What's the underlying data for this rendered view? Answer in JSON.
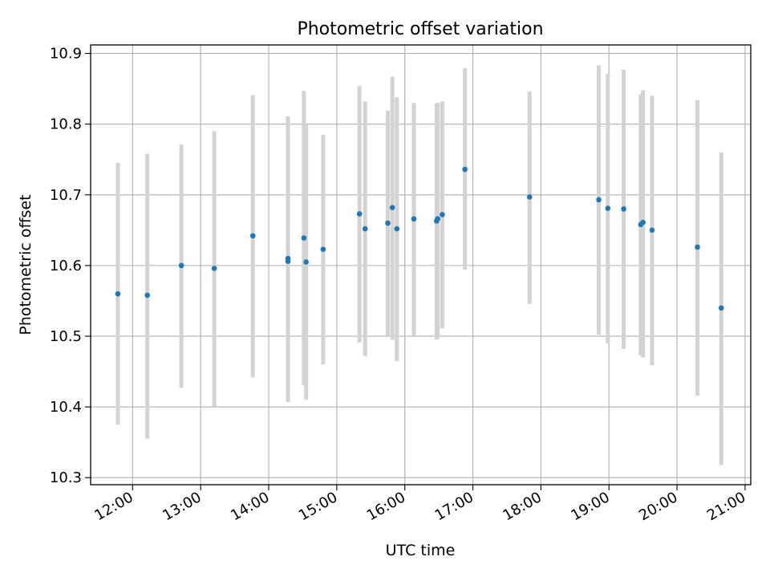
{
  "chart_data": {
    "type": "scatter",
    "title": "Photometric offset variation",
    "xlabel": "UTC time",
    "ylabel": "Photometric offset",
    "xlim": [
      "11:23",
      "21:05"
    ],
    "ylim": [
      10.29,
      10.912
    ],
    "xticks": [
      "12:00",
      "13:00",
      "14:00",
      "15:00",
      "16:00",
      "17:00",
      "18:00",
      "19:00",
      "20:00",
      "21:00"
    ],
    "yticks": [
      "10.3",
      "10.4",
      "10.5",
      "10.6",
      "10.7",
      "10.8",
      "10.9"
    ],
    "grid": true,
    "point_color": "#1f77b4",
    "errorbar_color": "#d3d3d3",
    "series": [
      {
        "x": [
          "11:47",
          "12:13",
          "12:43",
          "13:12",
          "13:46",
          "14:17",
          "14:17",
          "14:31",
          "14:33",
          "14:48",
          "15:20",
          "15:25",
          "15:45",
          "15:49",
          "15:53",
          "16:08",
          "16:28",
          "16:29",
          "16:33",
          "16:53",
          "17:50",
          "18:51",
          "18:59",
          "19:13",
          "19:28",
          "19:30",
          "19:38",
          "20:18",
          "20:39"
        ],
        "y": [
          10.56,
          10.558,
          10.6,
          10.596,
          10.642,
          10.61,
          10.606,
          10.639,
          10.605,
          10.623,
          10.673,
          10.652,
          10.66,
          10.682,
          10.652,
          10.666,
          10.663,
          10.666,
          10.672,
          10.736,
          10.697,
          10.693,
          10.681,
          10.68,
          10.658,
          10.661,
          10.65,
          10.626,
          10.54
        ],
        "y_low": [
          10.375,
          10.355,
          10.427,
          10.401,
          10.442,
          10.407,
          10.407,
          10.431,
          10.41,
          10.46,
          10.491,
          10.472,
          10.501,
          10.495,
          10.465,
          10.501,
          10.495,
          10.497,
          10.511,
          10.594,
          10.546,
          10.502,
          10.49,
          10.482,
          10.473,
          10.47,
          10.459,
          10.416,
          10.318
        ],
        "y_high": [
          10.745,
          10.758,
          10.771,
          10.79,
          10.841,
          10.811,
          10.811,
          10.847,
          10.799,
          10.785,
          10.854,
          10.832,
          10.819,
          10.867,
          10.838,
          10.83,
          10.829,
          10.83,
          10.832,
          10.879,
          10.846,
          10.883,
          10.871,
          10.877,
          10.842,
          10.848,
          10.84,
          10.834,
          10.76
        ]
      }
    ]
  }
}
